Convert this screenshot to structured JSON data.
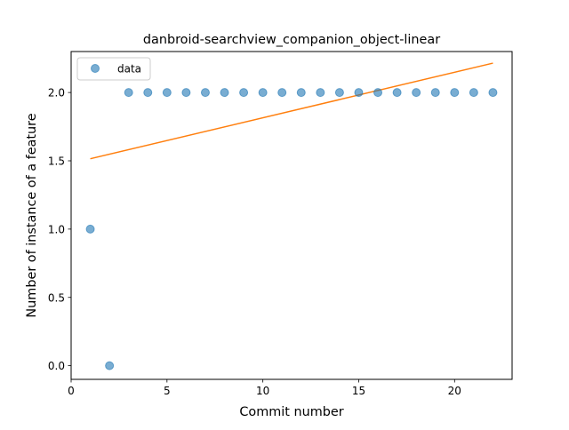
{
  "chart_data": {
    "type": "scatter",
    "title": "danbroid-searchview_companion_object-linear",
    "xlabel": "Commit number",
    "ylabel": "Number of instance of a feature",
    "xlim": [
      0,
      23
    ],
    "ylim": [
      -0.1,
      2.3
    ],
    "xticks": [
      0,
      5,
      10,
      15,
      20
    ],
    "xtick_labels": [
      "0",
      "5",
      "10",
      "15",
      "20"
    ],
    "yticks": [
      0.0,
      0.5,
      1.0,
      1.5,
      2.0
    ],
    "ytick_labels": [
      "0.0",
      "0.5",
      "1.0",
      "1.5",
      "2.0"
    ],
    "grid": false,
    "legend": {
      "position": "top-left",
      "entries": [
        "data"
      ]
    },
    "series": [
      {
        "name": "data",
        "kind": "scatter",
        "color": "#1f77b4",
        "x": [
          1,
          2,
          3,
          4,
          5,
          6,
          7,
          8,
          9,
          10,
          11,
          12,
          13,
          14,
          15,
          16,
          17,
          18,
          19,
          20,
          21,
          22
        ],
        "y": [
          1,
          0,
          2,
          2,
          2,
          2,
          2,
          2,
          2,
          2,
          2,
          2,
          2,
          2,
          2,
          2,
          2,
          2,
          2,
          2,
          2,
          2
        ]
      },
      {
        "kind": "line",
        "color": "#ff7f0e",
        "x": [
          1,
          22
        ],
        "y": [
          1.515,
          2.215
        ]
      }
    ]
  }
}
